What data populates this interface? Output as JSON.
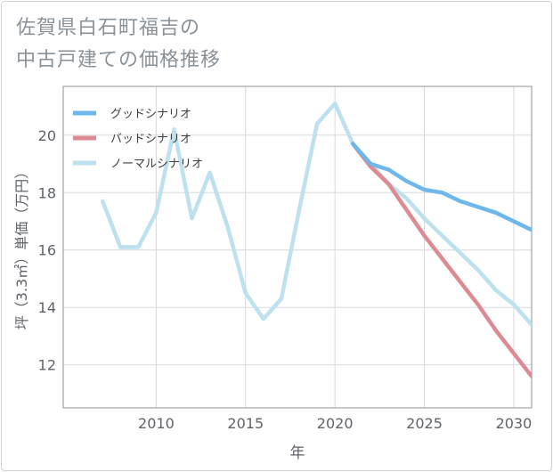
{
  "title_lines": [
    "佐賀県白石町福吉の",
    "中古戸建ての価格推移"
  ],
  "chart_data": {
    "type": "line",
    "title": "佐賀県白石町福吉の中古戸建ての価格推移",
    "xlabel": "年",
    "ylabel": "坪（3.3㎡）単価（万円）",
    "xlim": [
      2004.8,
      2031.0
    ],
    "ylim": [
      10.5,
      21.7
    ],
    "xticks": [
      2010,
      2015,
      2020,
      2025,
      2030
    ],
    "yticks": [
      12,
      14,
      16,
      18,
      20
    ],
    "grid": true,
    "legend_position": "top-left",
    "series": [
      {
        "name": "グッドシナリオ",
        "color": "#6db7ea",
        "x": [
          2021,
          2022,
          2023,
          2024,
          2025,
          2026,
          2027,
          2028,
          2029,
          2030,
          2031
        ],
        "y": [
          19.7,
          19.0,
          18.8,
          18.4,
          18.1,
          18.0,
          17.7,
          17.5,
          17.3,
          17.0,
          16.7
        ]
      },
      {
        "name": "バッドシナリオ",
        "color": "#dd8b93",
        "x": [
          2021,
          2022,
          2023,
          2024,
          2025,
          2026,
          2027,
          2028,
          2029,
          2030,
          2031
        ],
        "y": [
          19.7,
          18.9,
          18.3,
          17.4,
          16.5,
          15.7,
          14.9,
          14.1,
          13.2,
          12.4,
          11.6
        ]
      },
      {
        "name": "ノーマルシナリオ",
        "color": "#bde1ee",
        "x": [
          2007,
          2008,
          2009,
          2010,
          2011,
          2012,
          2013,
          2014,
          2015,
          2016,
          2017,
          2018,
          2019,
          2020,
          2021,
          2022,
          2023,
          2024,
          2025,
          2026,
          2027,
          2028,
          2029,
          2030,
          2031
        ],
        "y": [
          17.7,
          16.1,
          16.1,
          17.3,
          20.2,
          17.1,
          18.7,
          16.8,
          14.5,
          13.6,
          14.3,
          17.4,
          20.4,
          21.1,
          19.7,
          19.0,
          18.3,
          17.8,
          17.1,
          16.5,
          15.9,
          15.3,
          14.6,
          14.1,
          13.4
        ]
      }
    ]
  }
}
